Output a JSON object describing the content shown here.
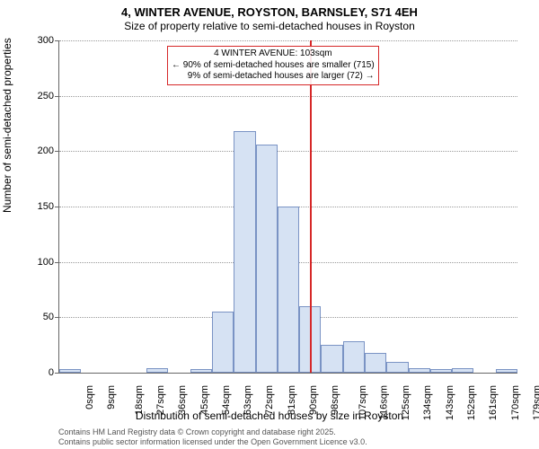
{
  "title_line1": "4, WINTER AVENUE, ROYSTON, BARNSLEY, S71 4EH",
  "title_line2": "Size of property relative to semi-detached houses in Royston",
  "ylabel": "Number of semi-detached properties",
  "xlabel": "Distribution of semi-detached houses by size in Royston",
  "footer_line1": "Contains HM Land Registry data © Crown copyright and database right 2025.",
  "footer_line2": "Contains public sector information licensed under the Open Government Licence v3.0.",
  "annotation": {
    "line1": "4 WINTER AVENUE: 103sqm",
    "line2": "← 90% of semi-detached houses are smaller (715)",
    "line3": "9% of semi-detached houses are larger (72) →"
  },
  "chart": {
    "type": "histogram",
    "ylim": [
      0,
      300
    ],
    "ytick_step": 50,
    "bar_fill": "#d6e2f3",
    "bar_stroke": "#7a93c4",
    "grid_color": "#999999",
    "axis_color": "#666666",
    "marker_color": "#d62728",
    "marker_x": 103,
    "background": "#ffffff",
    "title_fontsize": 13,
    "subtitle_fontsize": 12,
    "label_fontsize": 12,
    "tick_fontsize": 11,
    "annotation_fontsize": 10,
    "footer_fontsize": 9,
    "x_categories": [
      "0sqm",
      "9sqm",
      "18sqm",
      "27sqm",
      "36sqm",
      "45sqm",
      "54sqm",
      "63sqm",
      "72sqm",
      "81sqm",
      "90sqm",
      "98sqm",
      "107sqm",
      "116sqm",
      "125sqm",
      "134sqm",
      "143sqm",
      "152sqm",
      "161sqm",
      "170sqm",
      "179sqm"
    ],
    "values": [
      3,
      0,
      0,
      0,
      4,
      0,
      3,
      55,
      218,
      206,
      150,
      60,
      25,
      28,
      18,
      10,
      4,
      3,
      4,
      0,
      3
    ]
  }
}
